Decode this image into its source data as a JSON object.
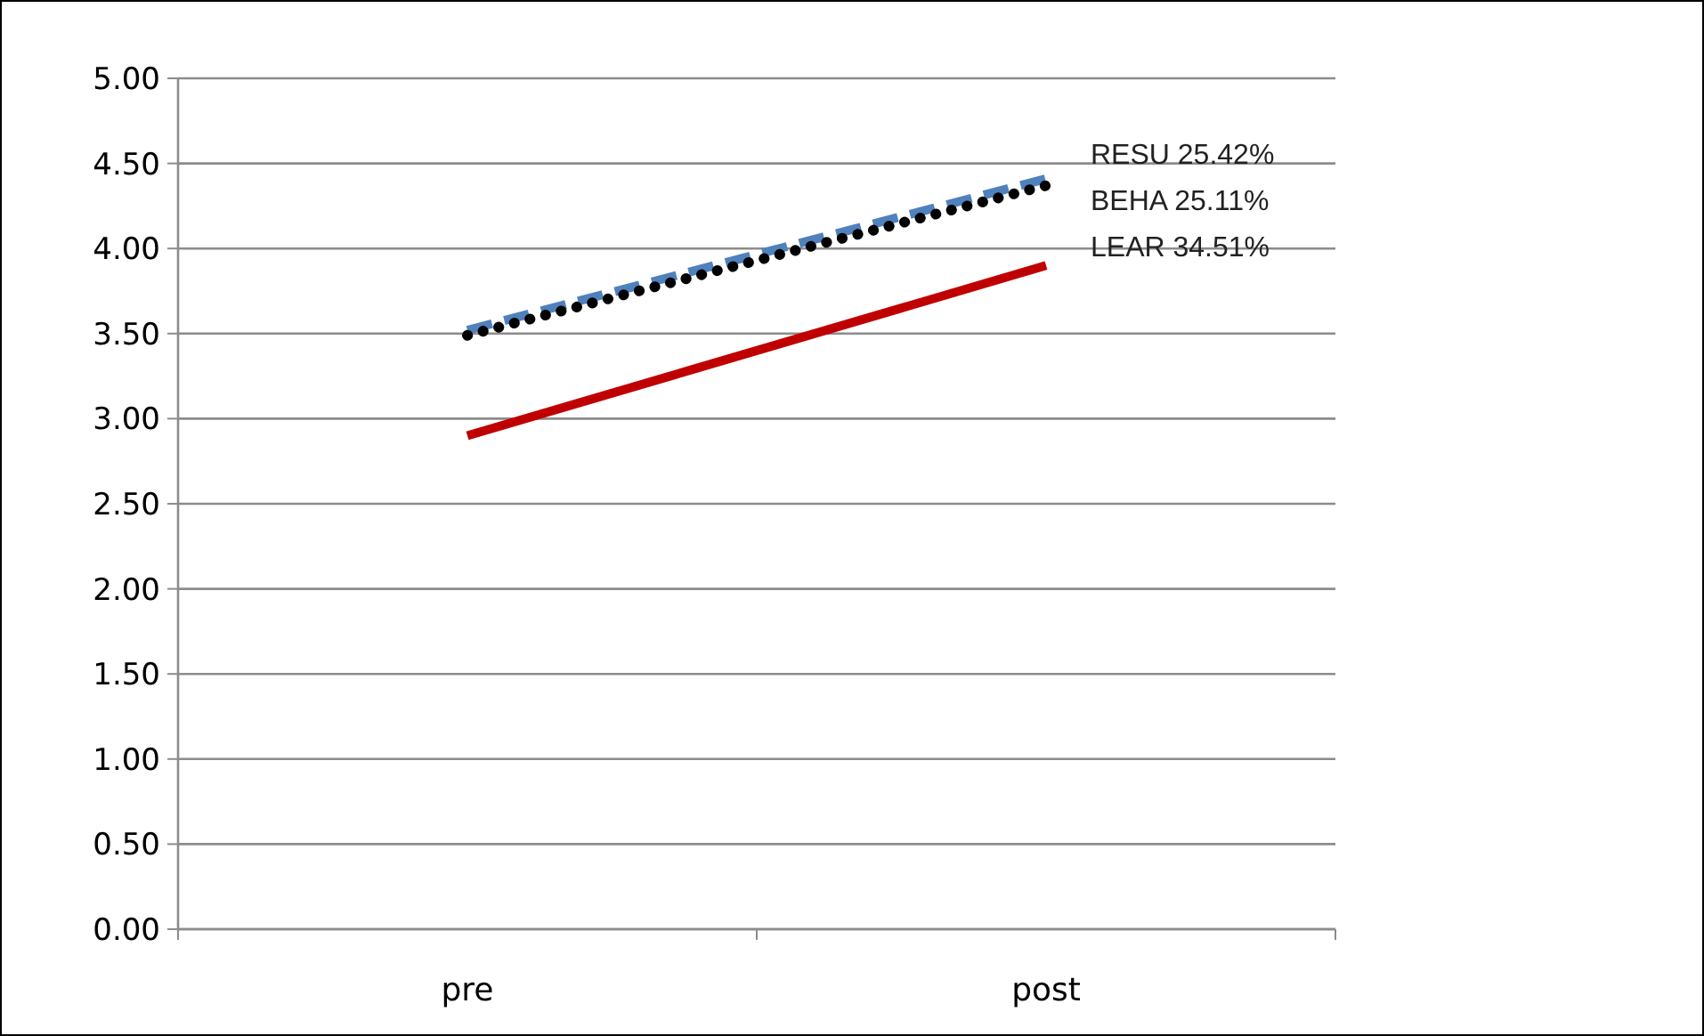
{
  "chart_data": {
    "type": "line",
    "categories": [
      "pre",
      "post"
    ],
    "series": [
      {
        "name": "RESU 25.42%",
        "color": "#4f81bd",
        "values": [
          3.52,
          4.41
        ],
        "line_style": "dashed"
      },
      {
        "name": "BEHA 25.11%",
        "color": "#000000",
        "values": [
          3.49,
          4.37
        ],
        "line_style": "dotted"
      },
      {
        "name": "LEAR 34.51%",
        "color": "#c00000",
        "values": [
          2.9,
          3.9
        ],
        "line_style": "solid"
      }
    ],
    "ylim": [
      0,
      5
    ],
    "yticks": [
      {
        "value": 0,
        "label": "0.00"
      },
      {
        "value": 0.5,
        "label": "0.50"
      },
      {
        "value": 1,
        "label": "1.00"
      },
      {
        "value": 1.5,
        "label": "1.50"
      },
      {
        "value": 2,
        "label": "2.00"
      },
      {
        "value": 2.5,
        "label": "2.50"
      },
      {
        "value": 3,
        "label": "3.00"
      },
      {
        "value": 3.5,
        "label": "3.50"
      },
      {
        "value": 4,
        "label": "4.00"
      },
      {
        "value": 4.5,
        "label": "4.50"
      },
      {
        "value": 5,
        "label": "5.00"
      }
    ],
    "grid": "y",
    "legend": false,
    "marker": "none"
  }
}
